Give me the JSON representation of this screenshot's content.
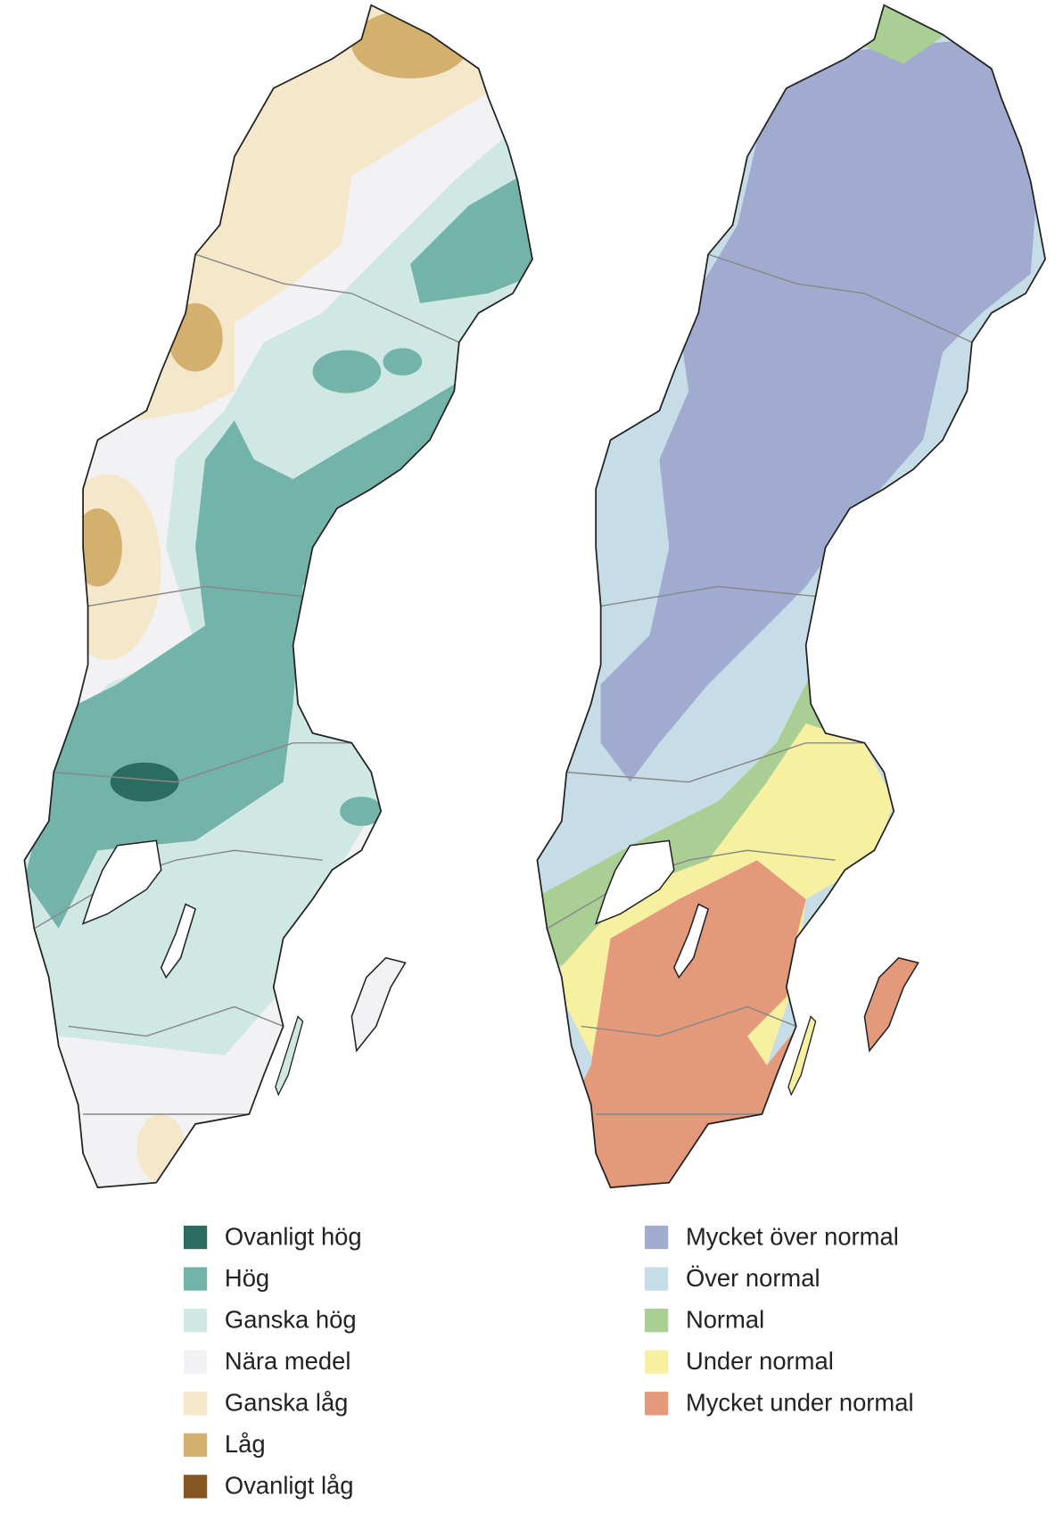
{
  "legends": [
    {
      "items": [
        {
          "label": "Ovanligt hög",
          "color": "#2b6b60"
        },
        {
          "label": "Hög",
          "color": "#74b3aa"
        },
        {
          "label": "Ganska hög",
          "color": "#cfe8e3"
        },
        {
          "label": "Nära medel",
          "color": "#f2f2f4"
        },
        {
          "label": "Ganska låg",
          "color": "#f5e7c9"
        },
        {
          "label": "Låg",
          "color": "#d4b06e"
        },
        {
          "label": "Ovanligt låg",
          "color": "#875522"
        }
      ]
    },
    {
      "items": [
        {
          "label": "Mycket över normal",
          "color": "#a0abcf"
        },
        {
          "label": "Över normal",
          "color": "#c6dce7"
        },
        {
          "label": "Normal",
          "color": "#a9cf94"
        },
        {
          "label": "Under normal",
          "color": "#f6f0a0"
        },
        {
          "label": "Mycket under normal",
          "color": "#e3997a"
        }
      ]
    }
  ]
}
